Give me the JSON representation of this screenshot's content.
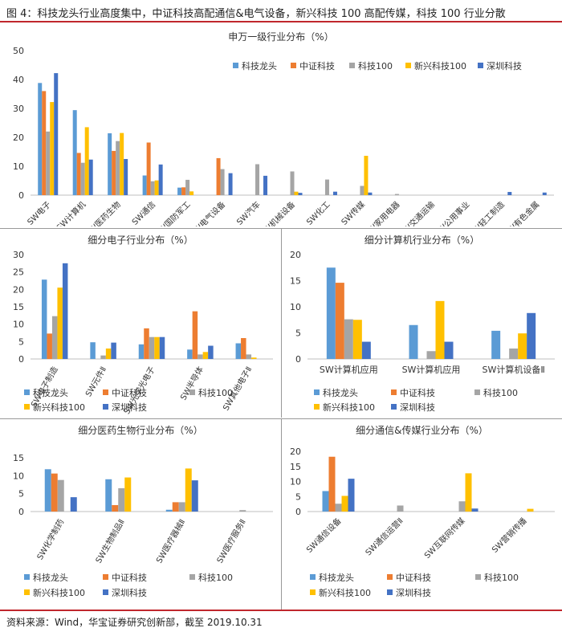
{
  "figure": {
    "title": "图 4：科技龙头行业高度集中，中证科技高配通信&电气设备，新兴科技 100 高配传媒，科技 100 行业分散",
    "source": "资料来源：Wind，华宝证券研究创新部，截至 2019.10.31"
  },
  "series_names": [
    "科技龙头",
    "中证科技",
    "科技100",
    "新兴科技100",
    "深圳科技"
  ],
  "colors": [
    "#5b9bd5",
    "#ed7d31",
    "#a5a5a5",
    "#ffc000",
    "#4472c4"
  ],
  "chart_data": [
    {
      "type": "bar",
      "title": "申万一级行业分布（%）",
      "categories": [
        "SW电子",
        "SW计算机",
        "SW医药生物",
        "SW通信",
        "SW国防军工",
        "SW电气设备",
        "SW汽车",
        "SW机械设备",
        "SW化工",
        "SW传媒",
        "SW家用电器",
        "SW交通运输",
        "SW公用事业",
        "SW轻工制造",
        "SW有色金属"
      ],
      "ylim": [
        0,
        50
      ],
      "yticks": [
        0,
        10,
        20,
        30,
        40,
        50
      ],
      "series": [
        {
          "name": "科技龙头",
          "values": [
            38.8,
            29.4,
            21.4,
            6.8,
            2.6,
            0,
            0,
            0,
            0,
            0,
            0,
            0,
            0,
            0,
            0
          ]
        },
        {
          "name": "中证科技",
          "values": [
            36,
            14.6,
            15.3,
            18.2,
            2.7,
            12.8,
            0,
            0,
            0,
            0,
            0,
            0,
            0,
            0,
            0
          ]
        },
        {
          "name": "科技100",
          "values": [
            22,
            11.2,
            18.7,
            4.8,
            5.3,
            9,
            10.7,
            8.2,
            5.4,
            3.2,
            0.4,
            0,
            0,
            0,
            0
          ]
        },
        {
          "name": "新兴科技100",
          "values": [
            32.2,
            23.5,
            21.5,
            5.1,
            1.3,
            0,
            0,
            1.2,
            0,
            13.6,
            0,
            0,
            0,
            0,
            0
          ]
        },
        {
          "name": "深圳科技",
          "values": [
            42.2,
            12.3,
            12.5,
            10.6,
            0,
            7.6,
            6.7,
            0.8,
            1.2,
            0.9,
            0,
            0,
            0,
            1.1,
            0.9
          ]
        }
      ]
    },
    {
      "type": "bar",
      "title": "细分电子行业分布（%）",
      "categories": [
        "SW电子制造",
        "SW元件Ⅱ",
        "SW光学光电子",
        "SW半导体",
        "SW其他电子Ⅱ"
      ],
      "ylim": [
        0,
        30
      ],
      "yticks": [
        0,
        5,
        10,
        15,
        20,
        25,
        30
      ],
      "series": [
        {
          "name": "科技龙头",
          "values": [
            22.8,
            4.8,
            4.2,
            2.7,
            4.5
          ]
        },
        {
          "name": "中证科技",
          "values": [
            7.3,
            0,
            8.8,
            13.7,
            6
          ]
        },
        {
          "name": "科技100",
          "values": [
            12.3,
            1,
            6.3,
            1.3,
            1.3
          ]
        },
        {
          "name": "新兴科技100",
          "values": [
            20.5,
            3,
            6.3,
            2,
            0.4
          ]
        },
        {
          "name": "深圳科技",
          "values": [
            27.5,
            4.7,
            6.3,
            3.8,
            0
          ]
        }
      ]
    },
    {
      "type": "bar",
      "title": "细分计算机行业分布（%）",
      "categories": [
        "SW计算机应用",
        "SW计算机应用",
        "SW计算机设备Ⅱ"
      ],
      "ylim": [
        0,
        20
      ],
      "yticks": [
        0,
        5,
        10,
        15,
        20
      ],
      "series": [
        {
          "name": "科技龙头",
          "values": [
            17.5,
            6.5,
            5.4
          ]
        },
        {
          "name": "中证科技",
          "values": [
            14.6,
            0,
            0
          ]
        },
        {
          "name": "科技100",
          "values": [
            7.6,
            1.5,
            2
          ]
        },
        {
          "name": "新兴科技100",
          "values": [
            7.5,
            11.1,
            4.9
          ]
        },
        {
          "name": "深圳科技",
          "values": [
            3.3,
            3.3,
            8.8
          ]
        }
      ]
    },
    {
      "type": "bar",
      "title": "细分医药生物行业分布（%）",
      "categories": [
        "SW化学制药",
        "SW生物制品Ⅱ",
        "SW医疗器械Ⅱ",
        "SW医疗服务Ⅱ"
      ],
      "ylim": [
        0,
        15
      ],
      "yticks": [
        0,
        5,
        10,
        15
      ],
      "series": [
        {
          "name": "科技龙头",
          "values": [
            11.8,
            9,
            0.5,
            0
          ]
        },
        {
          "name": "中证科技",
          "values": [
            10.6,
            1.8,
            2.6,
            0
          ]
        },
        {
          "name": "科技100",
          "values": [
            8.8,
            6.5,
            2.6,
            0.4
          ]
        },
        {
          "name": "新兴科技100",
          "values": [
            0,
            9.5,
            12,
            0
          ]
        },
        {
          "name": "深圳科技",
          "values": [
            4,
            0,
            8.7,
            0
          ]
        }
      ]
    },
    {
      "type": "bar",
      "title": "细分通信&传媒行业分布（%）",
      "categories": [
        "SW通信设备",
        "SW通信运营Ⅱ",
        "SW互联网传媒",
        "SW营销传播"
      ],
      "ylim": [
        0,
        20
      ],
      "yticks": [
        0,
        5,
        10,
        15,
        20
      ],
      "series": [
        {
          "name": "科技龙头",
          "values": [
            6.8,
            0,
            0,
            0
          ]
        },
        {
          "name": "中证科技",
          "values": [
            18.2,
            0,
            0,
            0
          ]
        },
        {
          "name": "科技100",
          "values": [
            2.6,
            2,
            3.4,
            0
          ]
        },
        {
          "name": "新兴科技100",
          "values": [
            5.2,
            0,
            12.7,
            0.9
          ]
        },
        {
          "name": "深圳科技",
          "values": [
            10.9,
            0,
            1,
            0
          ]
        }
      ]
    }
  ]
}
